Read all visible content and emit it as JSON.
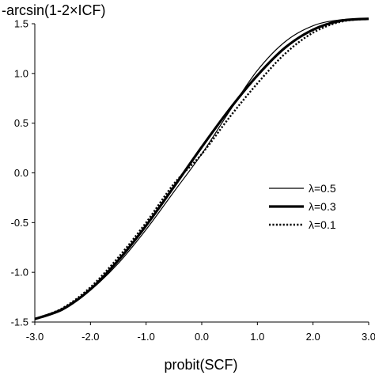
{
  "chart_data": {
    "type": "line",
    "title": "",
    "xlabel": "probit(SCF)",
    "ylabel": "-arcsin(1-2×ICF)",
    "xlim": [
      -3.0,
      3.0
    ],
    "ylim": [
      -1.5,
      1.5
    ],
    "x_ticks": [
      "-3.0",
      "-2.0",
      "-1.0",
      "0.0",
      "1.0",
      "2.0",
      "3.0"
    ],
    "y_ticks": [
      "-1.5",
      "-1.0",
      "-0.5",
      "0.0",
      "0.5",
      "1.0",
      "1.5"
    ],
    "grid": false,
    "legend_position": "right",
    "x": [
      -3.0,
      -2.5,
      -2.0,
      -1.5,
      -1.0,
      -0.5,
      0.0,
      0.5,
      1.0,
      1.5,
      2.0,
      2.5,
      3.0
    ],
    "series": [
      {
        "name": "λ=0.5",
        "style": "thin",
        "color": "#000000",
        "values": [
          -1.47,
          -1.38,
          -1.18,
          -0.91,
          -0.57,
          -0.19,
          0.19,
          0.62,
          1.03,
          1.32,
          1.48,
          1.54,
          1.55
        ]
      },
      {
        "name": "λ=0.3",
        "style": "thick",
        "color": "#000000",
        "values": [
          -1.47,
          -1.37,
          -1.17,
          -0.88,
          -0.53,
          -0.14,
          0.26,
          0.64,
          0.98,
          1.26,
          1.44,
          1.53,
          1.55
        ]
      },
      {
        "name": "λ=0.1",
        "style": "dotted",
        "color": "#000000",
        "values": [
          -1.47,
          -1.36,
          -1.15,
          -0.85,
          -0.5,
          -0.11,
          0.19,
          0.56,
          0.9,
          1.2,
          1.41,
          1.52,
          1.55
        ]
      }
    ]
  }
}
